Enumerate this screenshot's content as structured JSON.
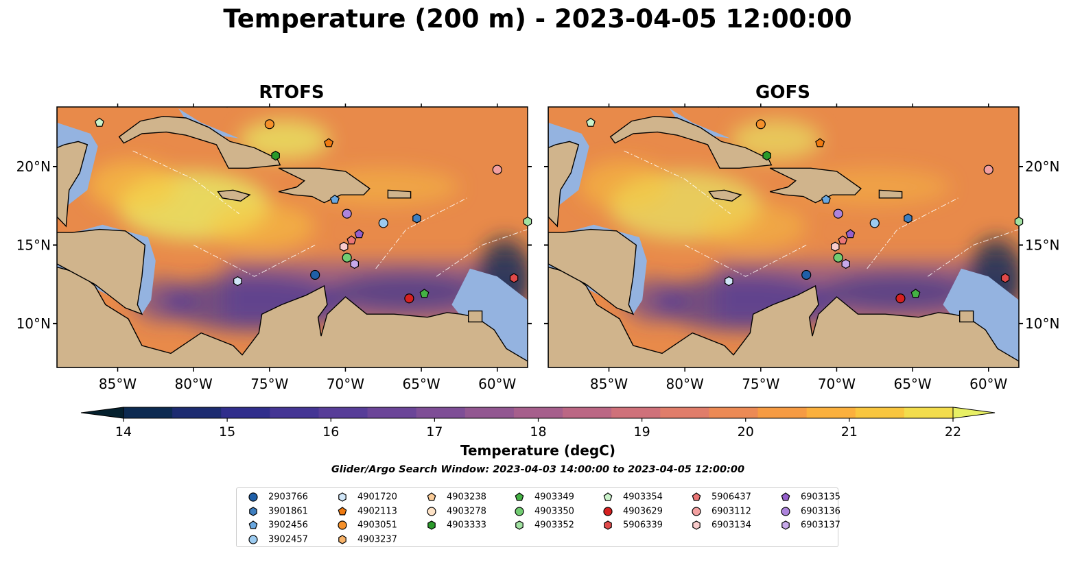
{
  "title": "Temperature (200 m) - 2023-04-05 12:00:00",
  "panels": [
    {
      "name": "RTOFS"
    },
    {
      "name": "GOFS"
    }
  ],
  "lon_ticks": [
    "85°W",
    "80°W",
    "75°W",
    "70°W",
    "65°W",
    "60°W"
  ],
  "lat_ticks": [
    "20°N",
    "15°N",
    "10°N"
  ],
  "colorbar": {
    "label": "Temperature (degC)",
    "min": 14,
    "max": 22,
    "ticks": [
      "14",
      "15",
      "16",
      "17",
      "18",
      "19",
      "20",
      "21",
      "22"
    ],
    "colors": [
      "#04202e",
      "#0c2a51",
      "#1c2b70",
      "#302e8c",
      "#443594",
      "#573d98",
      "#6b4598",
      "#7e4e96",
      "#925791",
      "#a65f8c",
      "#bb6784",
      "#cf717a",
      "#e07d6a",
      "#ec8a55",
      "#f69b43",
      "#fbb03d",
      "#f9c63f",
      "#f3dd4c",
      "#e8f065"
    ]
  },
  "search_window": "Glider/Argo Search Window: 2023-04-03 14:00:00 to 2023-04-05 12:00:00",
  "legend": [
    {
      "id": "2903766",
      "marker": "circle",
      "color": "#1f5fa8"
    },
    {
      "id": "3901861",
      "marker": "hexagon",
      "color": "#3f7fc0"
    },
    {
      "id": "3902456",
      "marker": "pentagon",
      "color": "#6aa8e0"
    },
    {
      "id": "3902457",
      "marker": "circle",
      "color": "#9ccbf0"
    },
    {
      "id": "4901720",
      "marker": "hexagon",
      "color": "#d0e6f8"
    },
    {
      "id": "4902113",
      "marker": "pentagon",
      "color": "#f07a10"
    },
    {
      "id": "4903051",
      "marker": "circle",
      "color": "#f5902a"
    },
    {
      "id": "4903237",
      "marker": "hexagon",
      "color": "#f9b46a"
    },
    {
      "id": "4903238",
      "marker": "pentagon",
      "color": "#fbcc98"
    },
    {
      "id": "4903278",
      "marker": "circle",
      "color": "#fde2c6"
    },
    {
      "id": "4903333",
      "marker": "hexagon",
      "color": "#2a9a2a"
    },
    {
      "id": "4903349",
      "marker": "pentagon",
      "color": "#44b244"
    },
    {
      "id": "4903350",
      "marker": "circle",
      "color": "#72cc72"
    },
    {
      "id": "4903352",
      "marker": "hexagon",
      "color": "#a2e2a2"
    },
    {
      "id": "4903354",
      "marker": "pentagon",
      "color": "#cbf3cb"
    },
    {
      "id": "4903629",
      "marker": "circle",
      "color": "#d62020"
    },
    {
      "id": "5906339",
      "marker": "hexagon",
      "color": "#e04a4a"
    },
    {
      "id": "5906437",
      "marker": "pentagon",
      "color": "#ea7676"
    },
    {
      "id": "6903112",
      "marker": "circle",
      "color": "#f2a0a0"
    },
    {
      "id": "6903134",
      "marker": "hexagon",
      "color": "#f9cccc"
    },
    {
      "id": "6903135",
      "marker": "pentagon",
      "color": "#9560cc"
    },
    {
      "id": "6903136",
      "marker": "circle",
      "color": "#ad84dc"
    },
    {
      "id": "6903137",
      "marker": "hexagon",
      "color": "#c7a9ea"
    }
  ],
  "floats": [
    {
      "id": "2903766",
      "lon": -72.0,
      "lat": 13.1
    },
    {
      "id": "3901861",
      "lon": -65.3,
      "lat": 16.7
    },
    {
      "id": "3902456",
      "lon": -70.7,
      "lat": 17.9
    },
    {
      "id": "3902457",
      "lon": -67.5,
      "lat": 16.4
    },
    {
      "id": "4901720",
      "lon": -77.1,
      "lat": 12.7
    },
    {
      "id": "4902113",
      "lon": -71.1,
      "lat": 21.5
    },
    {
      "id": "4903051",
      "lon": -75.0,
      "lat": 22.7
    },
    {
      "id": "4903333",
      "lon": -74.6,
      "lat": 20.7
    },
    {
      "id": "4903349",
      "lon": -64.8,
      "lat": 11.9
    },
    {
      "id": "4903350",
      "lon": -69.9,
      "lat": 14.2
    },
    {
      "id": "4903354",
      "lon": -86.2,
      "lat": 22.8
    },
    {
      "id": "4903629",
      "lon": -65.8,
      "lat": 11.6
    },
    {
      "id": "5906339",
      "lon": -58.9,
      "lat": 12.9
    },
    {
      "id": "5906437",
      "lon": -69.6,
      "lat": 15.3
    },
    {
      "id": "6903112",
      "lon": -60.0,
      "lat": 19.8
    },
    {
      "id": "6903134",
      "lon": -70.1,
      "lat": 14.9
    },
    {
      "id": "6903135",
      "lon": -69.1,
      "lat": 15.7
    },
    {
      "id": "6903136",
      "lon": -69.9,
      "lat": 17.0
    },
    {
      "id": "6903137",
      "lon": -69.4,
      "lat": 13.8
    },
    {
      "id": "4903352",
      "lon": -58.0,
      "lat": 16.5
    }
  ]
}
